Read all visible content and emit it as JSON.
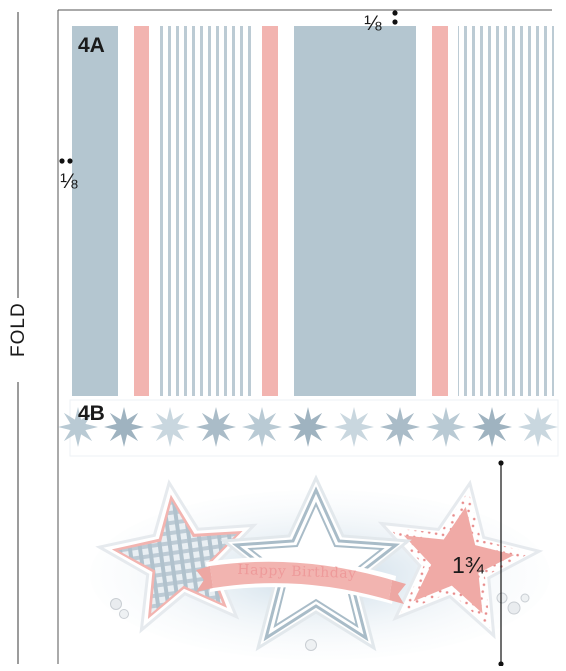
{
  "fold_label": "FOLD",
  "panels": {
    "panel_4a_label": "4A",
    "panel_4b_label": "4B"
  },
  "measurements": {
    "top_margin": "⅛",
    "left_margin": "⅛",
    "embellishment_height": "1¾"
  },
  "embellishment": {
    "banner_text": "Happy Birthday"
  },
  "colors": {
    "slate_blue": "#b4c6d0",
    "coral_pink": "#f2b4b0",
    "sky_wash": "#dbe7ef",
    "ink": "#1a1a1a"
  }
}
